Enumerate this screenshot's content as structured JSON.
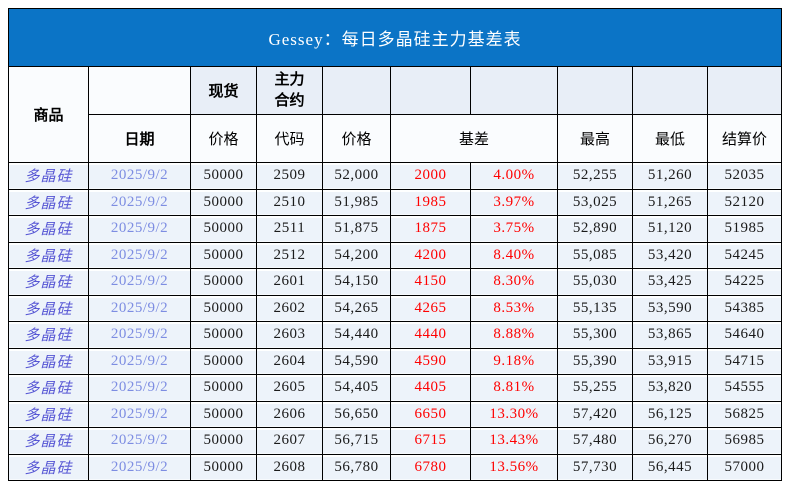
{
  "title": "Gessey：每日多晶硅主力基差表",
  "table": {
    "header": {
      "product": "商品",
      "date": "日期",
      "spot": "现货",
      "main_contract": "主力合约",
      "price_spot": "价格",
      "code": "代码",
      "price_future": "价格",
      "basis": "基差",
      "high": "最高",
      "low": "最低",
      "settlement": "结算价"
    },
    "rows": [
      {
        "product": "多晶硅",
        "date": "2025/9/2",
        "spot_price": "50000",
        "code": "2509",
        "price": "52,000",
        "basis": "2000",
        "basis_pct": "4.00%",
        "high": "52,255",
        "low": "51,260",
        "settlement": "52035"
      },
      {
        "product": "多晶硅",
        "date": "2025/9/2",
        "spot_price": "50000",
        "code": "2510",
        "price": "51,985",
        "basis": "1985",
        "basis_pct": "3.97%",
        "high": "53,025",
        "low": "51,265",
        "settlement": "52120"
      },
      {
        "product": "多晶硅",
        "date": "2025/9/2",
        "spot_price": "50000",
        "code": "2511",
        "price": "51,875",
        "basis": "1875",
        "basis_pct": "3.75%",
        "high": "52,890",
        "low": "51,120",
        "settlement": "51985"
      },
      {
        "product": "多晶硅",
        "date": "2025/9/2",
        "spot_price": "50000",
        "code": "2512",
        "price": "54,200",
        "basis": "4200",
        "basis_pct": "8.40%",
        "high": "55,085",
        "low": "53,420",
        "settlement": "54245"
      },
      {
        "product": "多晶硅",
        "date": "2025/9/2",
        "spot_price": "50000",
        "code": "2601",
        "price": "54,150",
        "basis": "4150",
        "basis_pct": "8.30%",
        "high": "55,030",
        "low": "53,425",
        "settlement": "54225"
      },
      {
        "product": "多晶硅",
        "date": "2025/9/2",
        "spot_price": "50000",
        "code": "2602",
        "price": "54,265",
        "basis": "4265",
        "basis_pct": "8.53%",
        "high": "55,135",
        "low": "53,590",
        "settlement": "54385"
      },
      {
        "product": "多晶硅",
        "date": "2025/9/2",
        "spot_price": "50000",
        "code": "2603",
        "price": "54,440",
        "basis": "4440",
        "basis_pct": "8.88%",
        "high": "55,300",
        "low": "53,865",
        "settlement": "54640"
      },
      {
        "product": "多晶硅",
        "date": "2025/9/2",
        "spot_price": "50000",
        "code": "2604",
        "price": "54,590",
        "basis": "4590",
        "basis_pct": "9.18%",
        "high": "55,390",
        "low": "53,915",
        "settlement": "54715"
      },
      {
        "product": "多晶硅",
        "date": "2025/9/2",
        "spot_price": "50000",
        "code": "2605",
        "price": "54,405",
        "basis": "4405",
        "basis_pct": "8.81%",
        "high": "55,255",
        "low": "53,820",
        "settlement": "54555"
      },
      {
        "product": "多晶硅",
        "date": "2025/9/2",
        "spot_price": "50000",
        "code": "2606",
        "price": "56,650",
        "basis": "6650",
        "basis_pct": "13.30%",
        "high": "57,420",
        "low": "56,125",
        "settlement": "56825"
      },
      {
        "product": "多晶硅",
        "date": "2025/9/2",
        "spot_price": "50000",
        "code": "2607",
        "price": "56,715",
        "basis": "6715",
        "basis_pct": "13.43%",
        "high": "57,480",
        "low": "56,270",
        "settlement": "56985"
      },
      {
        "product": "多晶硅",
        "date": "2025/9/2",
        "spot_price": "50000",
        "code": "2608",
        "price": "56,780",
        "basis": "6780",
        "basis_pct": "13.56%",
        "high": "57,730",
        "low": "56,445",
        "settlement": "57000"
      }
    ]
  },
  "colors": {
    "title-bar": "#0b74c6",
    "header-fill": "#e8eef7",
    "row-fill": "#edf3fa",
    "basis-red": "#ff0000",
    "product-text": "#5656d4",
    "date-text": "#7d8de2",
    "border": "#000000"
  }
}
